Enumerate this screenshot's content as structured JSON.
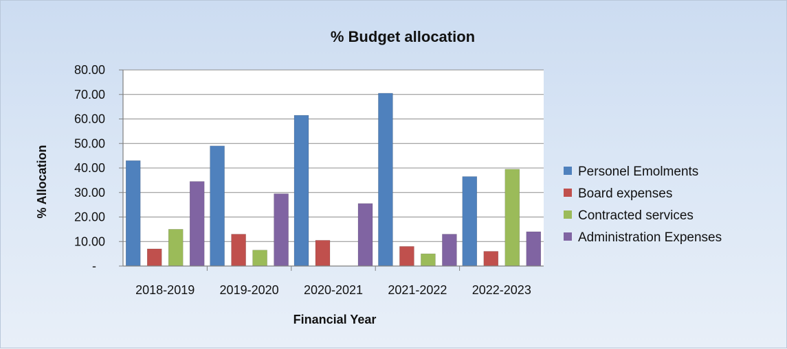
{
  "chart_data": {
    "type": "bar",
    "title": "% Budget allocation",
    "xlabel": "Financial Year",
    "ylabel": "% Allocation",
    "ylim": [
      0,
      80
    ],
    "yticks": [
      "-",
      "10.00",
      "20.00",
      "30.00",
      "40.00",
      "50.00",
      "60.00",
      "70.00",
      "80.00"
    ],
    "categories": [
      "2018-2019",
      "2019-2020",
      "2020-2021",
      "2021-2022",
      "2022-2023"
    ],
    "legend_position": "right",
    "series": [
      {
        "name": "Personel Emolments",
        "color": "#4f81bd",
        "values": [
          43,
          49,
          61.5,
          70.5,
          36.5
        ]
      },
      {
        "name": "Board expenses",
        "color": "#c0504d",
        "values": [
          7,
          13,
          10.5,
          8,
          6
        ]
      },
      {
        "name": "Contracted services",
        "color": "#9bbb59",
        "values": [
          15,
          6.5,
          0,
          5,
          39.5
        ]
      },
      {
        "name": "Administration Expenses",
        "color": "#8064a2",
        "values": [
          34.5,
          29.5,
          25.5,
          13,
          14
        ]
      }
    ]
  }
}
